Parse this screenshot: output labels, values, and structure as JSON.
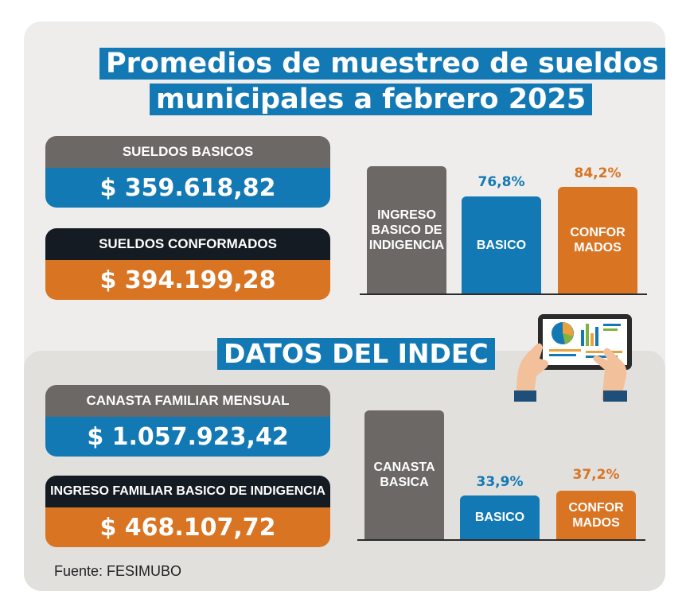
{
  "title": {
    "line1": "Promedios de muestreo de sueldos",
    "line2": "municipales a febrero 2025"
  },
  "top": {
    "basic_salary_label": "SUELDOS BASICOS",
    "basic_salary_value": "$ 359.618,82",
    "conformed_salary_label": "SUELDOS CONFORMADOS",
    "conformed_salary_value": "$ 394.199,28"
  },
  "indec": {
    "heading": "DATOS DEL INDEC",
    "basket_label": "CANASTA FAMILIAR MENSUAL",
    "basket_value": "$ 1.057.923,42",
    "indigence_label": "INGRESO FAMILIAR BASICO DE INDIGENCIA",
    "indigence_value": "$ 468.107,72"
  },
  "chart_data": [
    {
      "type": "bar",
      "categories": [
        "INGRESO BASICO DE INDIGENCIA",
        "BASICO",
        "CONFOR MADOS"
      ],
      "values": [
        100,
        76.8,
        84.2
      ],
      "data_labels": [
        "",
        "76,8%",
        "84,2%"
      ],
      "colors": [
        "#6b6865",
        "#1379b4",
        "#d97423"
      ]
    },
    {
      "type": "bar",
      "categories": [
        "CANASTA BASICA",
        "BASICO",
        "CONFOR MADOS"
      ],
      "values": [
        100,
        33.9,
        37.2
      ],
      "data_labels": [
        "",
        "33,9%",
        "37,2%"
      ],
      "colors": [
        "#6b6865",
        "#1379b4",
        "#d97423"
      ]
    }
  ],
  "bars": {
    "c1_indigence": [
      "INGRESO",
      "BASICO DE",
      "INDIGENCIA"
    ],
    "c1_basic": [
      "BASICO"
    ],
    "c1_conformed": [
      "CONFOR",
      "MADOS"
    ],
    "c2_basket": [
      "CANASTA",
      "BASICA"
    ],
    "c2_basic": [
      "BASICO"
    ],
    "c2_conformed": [
      "CONFOR",
      "MADOS"
    ]
  },
  "source": "Fuente: FESIMUBO",
  "colors": {
    "blue": "#1379b4",
    "orange": "#d97423",
    "gray": "#6b6865",
    "black": "#141b22",
    "background": "#eeedec"
  },
  "icons": {
    "tablet": "tablet-with-charts-icon"
  }
}
